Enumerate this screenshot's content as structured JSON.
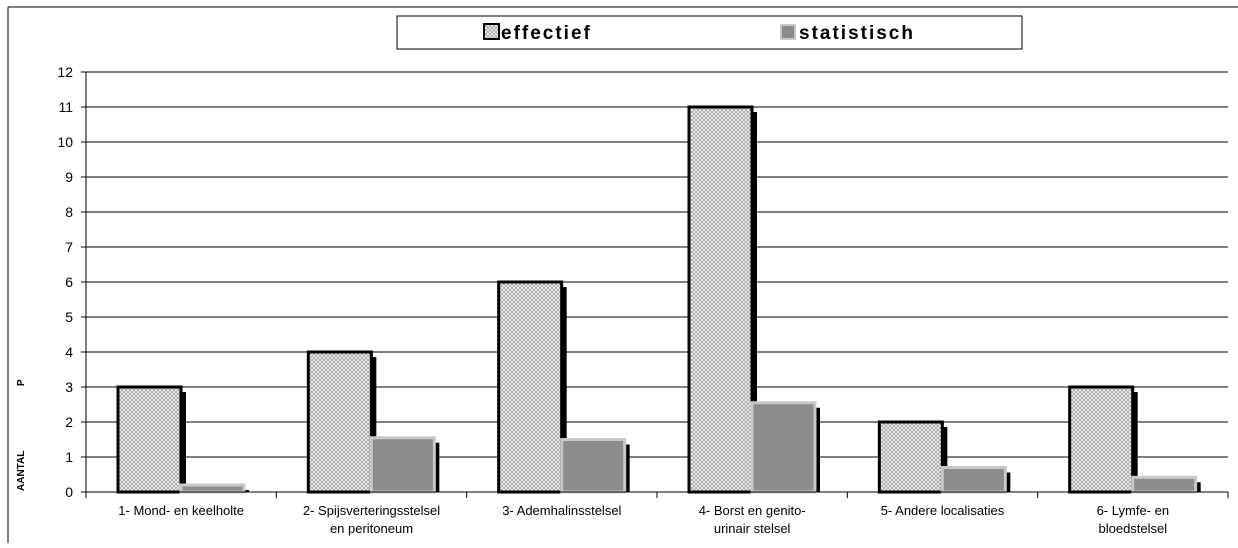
{
  "chart_data": {
    "type": "bar",
    "title": "",
    "xlabel": "",
    "ylabel": "AANTAL",
    "ylabel_secondary": "P",
    "ylim": [
      0,
      12
    ],
    "yticks": [
      0,
      1,
      2,
      3,
      4,
      5,
      6,
      7,
      8,
      9,
      10,
      11,
      12
    ],
    "grid": true,
    "legend_position": "top-center",
    "categories": [
      [
        "1- Mond- en keelholte"
      ],
      [
        "2- Spijsverteringsstelsel",
        "en peritoneum"
      ],
      [
        "3- Ademhalinsstelsel"
      ],
      [
        "4- Borst  en genito-",
        "urinair stelsel"
      ],
      [
        "5- Andere localisaties"
      ],
      [
        "6- Lymfe- en",
        "bloedstelsel"
      ]
    ],
    "series": [
      {
        "name": "effectief",
        "values": [
          3,
          4,
          6,
          11,
          2,
          3
        ],
        "color": "#e8e8e8",
        "pattern": "crosshatch"
      },
      {
        "name": "statistisch",
        "values": [
          0.2,
          1.55,
          1.5,
          2.55,
          0.7,
          0.42
        ],
        "color": "#8c8c8c",
        "pattern": "solid"
      }
    ]
  }
}
